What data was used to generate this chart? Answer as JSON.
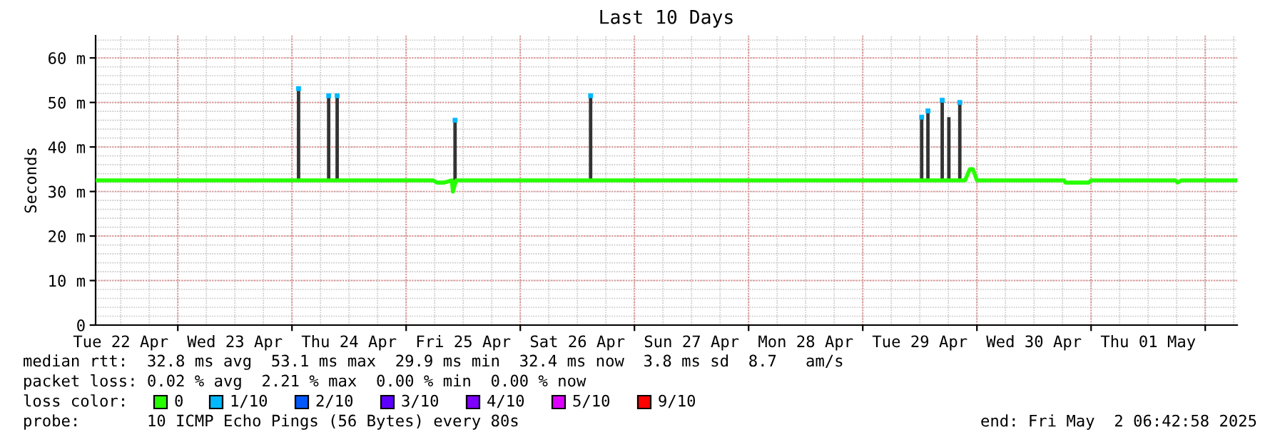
{
  "chart_data": {
    "type": "line",
    "title": "Last 10 Days",
    "ylabel": "Seconds",
    "legend_title": "loss color:",
    "legend": "bottom",
    "grid": true,
    "xlim": [
      "2025-04-22T06:43",
      "2025-05-02T06:43"
    ],
    "xticks": [
      {
        "value": "2025-04-22T12:00",
        "label": "Tue 22 Apr"
      },
      {
        "value": "2025-04-23T00:00",
        "label": null
      },
      {
        "value": "2025-04-23T12:00",
        "label": "Wed 23 Apr"
      },
      {
        "value": "2025-04-24T00:00",
        "label": null
      },
      {
        "value": "2025-04-24T12:00",
        "label": "Thu 24 Apr"
      },
      {
        "value": "2025-04-25T00:00",
        "label": null
      },
      {
        "value": "2025-04-25T12:00",
        "label": "Fri 25 Apr"
      },
      {
        "value": "2025-04-26T00:00",
        "label": null
      },
      {
        "value": "2025-04-26T12:00",
        "label": "Sat 26 Apr"
      },
      {
        "value": "2025-04-27T00:00",
        "label": null
      },
      {
        "value": "2025-04-27T12:00",
        "label": "Sun 27 Apr"
      },
      {
        "value": "2025-04-28T00:00",
        "label": null
      },
      {
        "value": "2025-04-28T12:00",
        "label": "Mon 28 Apr"
      },
      {
        "value": "2025-04-29T00:00",
        "label": null
      },
      {
        "value": "2025-04-29T12:00",
        "label": "Tue 29 Apr"
      },
      {
        "value": "2025-04-30T00:00",
        "label": null
      },
      {
        "value": "2025-04-30T12:00",
        "label": "Wed 30 Apr"
      },
      {
        "value": "2025-05-01T00:00",
        "label": null
      },
      {
        "value": "2025-05-01T12:00",
        "label": "Thu 01 May"
      },
      {
        "value": "2025-05-02T00:00",
        "label": null
      }
    ],
    "ylim": [
      0,
      65
    ],
    "yticks": [
      {
        "value": 0,
        "label": "0"
      },
      {
        "value": 10,
        "label": "10 m"
      },
      {
        "value": 20,
        "label": "20 m"
      },
      {
        "value": 30,
        "label": "30 m"
      },
      {
        "value": 40,
        "label": "40 m"
      },
      {
        "value": 50,
        "label": "50 m"
      },
      {
        "value": 60,
        "label": "60 m"
      }
    ],
    "series": [
      {
        "type": "bar",
        "color": "#333333",
        "x": [
          "2025-04-24T01:23",
          "2025-04-24T07:43",
          "2025-04-24T09:30",
          "2025-04-25T10:17",
          "2025-04-26T14:47",
          "2025-04-29T12:23",
          "2025-04-29T13:42",
          "2025-04-29T16:42",
          "2025-04-29T18:06",
          "2025-04-29T20:24"
        ],
        "base": [
          32.5,
          32.5,
          32.5,
          32.5,
          32.5,
          32.5,
          32.5,
          32.5,
          32.5,
          32.5
        ],
        "values": [
          20.6,
          19,
          19,
          13.5,
          19,
          14.2,
          15.6,
          18,
          14.2,
          17.5
        ]
      },
      {
        "name": "0",
        "color": "#26ff00",
        "x": [
          "2025-04-22T06:43",
          "2025-04-25T05:41",
          "2025-04-25T06:30",
          "2025-04-25T08:00",
          "2025-04-25T09:36",
          "2025-04-25T09:50",
          "2025-04-25T10:30",
          "2025-04-29T21:30",
          "2025-04-29T22:30",
          "2025-04-29T23:10",
          "2025-04-30T00:00",
          "2025-04-30T18:20",
          "2025-04-30T18:36",
          "2025-04-30T23:30",
          "2025-05-01T00:00",
          "2025-05-01T17:45",
          "2025-05-01T18:10",
          "2025-05-01T19:00",
          "2025-05-02T06:43"
        ],
        "values": [
          32.5,
          32.5,
          32.0,
          32.0,
          32.5,
          30.0,
          32.5,
          32.5,
          35,
          35,
          32.5,
          32.5,
          32.0,
          32.0,
          32.5,
          32.5,
          32.0,
          32.5,
          32.5
        ]
      },
      {
        "type": "scatter",
        "name": "1/10",
        "color": "#00b8ff",
        "x": [
          "2025-04-24T01:23",
          "2025-04-24T07:43",
          "2025-04-24T09:30",
          "2025-04-25T10:17",
          "2025-04-26T14:47",
          "2025-04-29T12:23",
          "2025-04-29T13:42",
          "2025-04-29T16:42",
          "2025-04-29T20:24"
        ],
        "values": [
          53.1,
          51.5,
          51.5,
          46,
          51.5,
          46.7,
          48.1,
          50.5,
          50
        ]
      },
      {
        "type": "scatter",
        "name": "2/10",
        "color": "#0059ff"
      },
      {
        "type": "scatter",
        "name": "3/10",
        "color": "#5e00ff"
      },
      {
        "type": "scatter",
        "name": "4/10",
        "color": "#7e00ff"
      },
      {
        "type": "scatter",
        "name": "5/10",
        "color": "#dd00ff"
      },
      {
        "type": "scatter",
        "name": "9/10",
        "color": "#ff0000"
      }
    ],
    "annotations": [
      "median rtt:  32.8 ms avg  53.1 ms max  29.9 ms min  32.4 ms now  3.8 ms sd  8.7   am/s",
      "packet loss: 0.02 % avg  2.21 % max  0.00 % min  0.00 % now",
      "probe:       10 ICMP Echo Pings (56 Bytes) every 80s",
      "end: Fri May  2 06:42:58 2025"
    ]
  }
}
